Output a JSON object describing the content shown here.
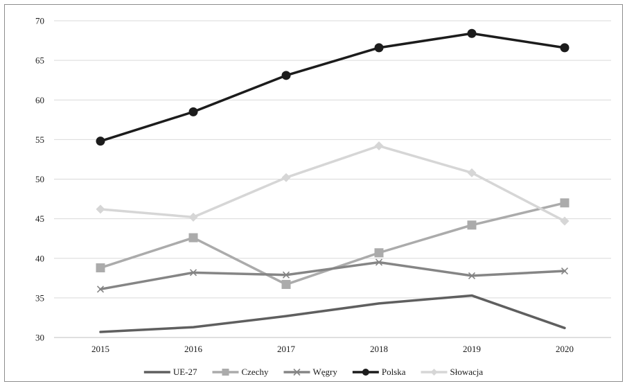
{
  "chart_data": {
    "type": "line",
    "title": "",
    "xlabel": "",
    "ylabel": "",
    "x": [
      "2015",
      "2016",
      "2017",
      "2018",
      "2019",
      "2020"
    ],
    "ylim": [
      30,
      70
    ],
    "yticks": [
      30,
      35,
      40,
      45,
      50,
      55,
      60,
      65,
      70
    ],
    "grid": true,
    "legend_position": "bottom",
    "series": [
      {
        "name": "UE-27",
        "color": "#5f5f5f",
        "marker": "none",
        "values": [
          30.7,
          31.3,
          32.7,
          34.3,
          35.3,
          31.2
        ]
      },
      {
        "name": "Czechy",
        "color": "#ababab",
        "marker": "square",
        "values": [
          38.8,
          42.6,
          36.7,
          40.7,
          44.2,
          47.0
        ]
      },
      {
        "name": "Węgry",
        "color": "#858585",
        "marker": "x",
        "values": [
          36.1,
          38.2,
          37.9,
          39.5,
          37.8,
          38.4
        ]
      },
      {
        "name": "Polska",
        "color": "#1c1c1c",
        "marker": "circle",
        "values": [
          54.8,
          58.5,
          63.1,
          66.6,
          68.4,
          66.6
        ]
      },
      {
        "name": "Słowacja",
        "color": "#d6d6d6",
        "marker": "diamond",
        "values": [
          46.2,
          45.2,
          50.2,
          54.2,
          50.8,
          44.7
        ]
      }
    ]
  }
}
